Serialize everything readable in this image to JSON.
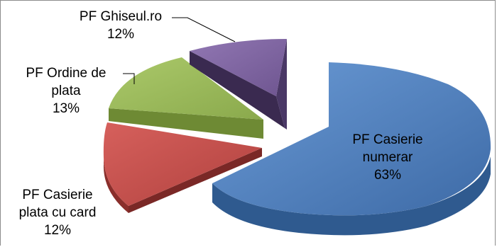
{
  "chart_data": {
    "type": "pie",
    "title": "",
    "slices": [
      {
        "name": "PF Casierie numerar",
        "line1": "PF Casierie",
        "line2": "numerar",
        "percent": "63%",
        "value": 63,
        "color": "#4F81BD",
        "dark": "#2f5a8f"
      },
      {
        "name": "PF Casierie plata cu card",
        "line1": "PF Casierie",
        "line2": "plata cu card",
        "percent": "12%",
        "value": 12,
        "color": "#C0504D",
        "dark": "#8a2e2b"
      },
      {
        "name": "PF Ordine de plata",
        "line1": "PF Ordine de",
        "line2": "plata",
        "percent": "13%",
        "value": 13,
        "color": "#9BBB59",
        "dark": "#5d7a2c"
      },
      {
        "name": "PF Ghiseul.ro",
        "line1": "PF Ghiseul.ro",
        "line2": "",
        "percent": "12%",
        "value": 12,
        "color": "#8064A2",
        "dark": "#3a2a50"
      }
    ]
  }
}
